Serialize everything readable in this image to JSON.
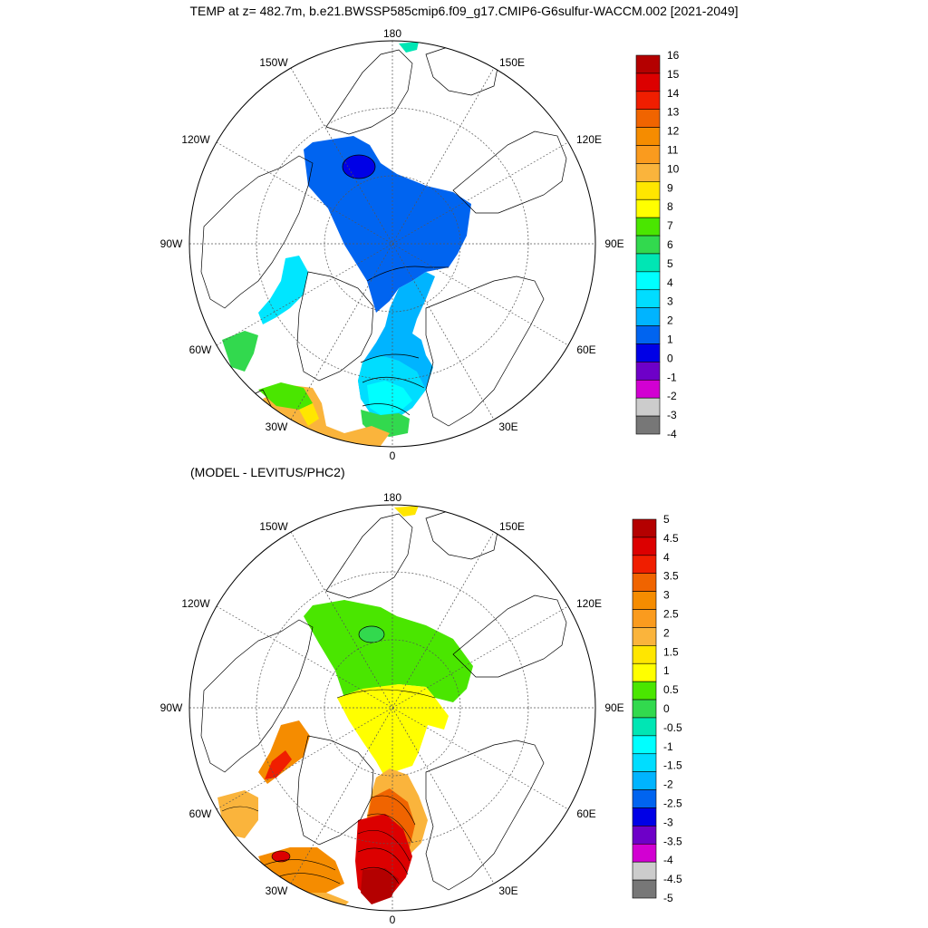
{
  "title": "TEMP at z= 482.7m, b.e21.BWSSP585cmip6.f09_g17.CMIP6-G6sulfur-WACCM.002 [2021-2049]",
  "panels": [
    {
      "subtitle": "",
      "lon_labels": [
        "180",
        "150E",
        "120E",
        "90E",
        "60E",
        "30E",
        "0",
        "30W",
        "60W",
        "90W",
        "120W",
        "150W"
      ],
      "colorbar": {
        "levels": [
          "16",
          "15",
          "14",
          "13",
          "12",
          "11",
          "10",
          "9",
          "8",
          "7",
          "6",
          "5",
          "4",
          "3",
          "2",
          "1",
          "0",
          "-1",
          "-2",
          "-3",
          "-4"
        ],
        "colors": [
          "#b40000",
          "#dc0000",
          "#f01e00",
          "#f06400",
          "#f58c00",
          "#fa9b1e",
          "#fab43c",
          "#ffe600",
          "#ffff00",
          "#4ae600",
          "#32d94e",
          "#00e6b4",
          "#00ffff",
          "#00ddff",
          "#00b4ff",
          "#0064f0",
          "#0000e6",
          "#6e00c8",
          "#d200d2",
          "#cccccc",
          "#777777"
        ]
      }
    },
    {
      "subtitle": "(MODEL - LEVITUS/PHC2)",
      "lon_labels": [
        "180",
        "150W",
        "120W",
        "90W",
        "60W",
        "30W",
        "0",
        "30E",
        "60E",
        "90E",
        "120E",
        "150E"
      ],
      "colorbar": {
        "levels": [
          "5",
          "4.5",
          "4",
          "3.5",
          "3",
          "2.5",
          "2",
          "1.5",
          "1",
          "0.5",
          "0",
          "-0.5",
          "-1",
          "-1.5",
          "-2",
          "-2.5",
          "-3",
          "-3.5",
          "-4",
          "-4.5",
          "-5"
        ],
        "colors": [
          "#b40000",
          "#dc0000",
          "#f01e00",
          "#f06400",
          "#f58c00",
          "#fa9b1e",
          "#fab43c",
          "#ffe600",
          "#ffff00",
          "#4ae600",
          "#32d94e",
          "#00e6b4",
          "#00ffff",
          "#00ddff",
          "#00b4ff",
          "#0064f0",
          "#0000e6",
          "#6e00c8",
          "#d200d2",
          "#cccccc",
          "#777777"
        ]
      }
    }
  ]
}
